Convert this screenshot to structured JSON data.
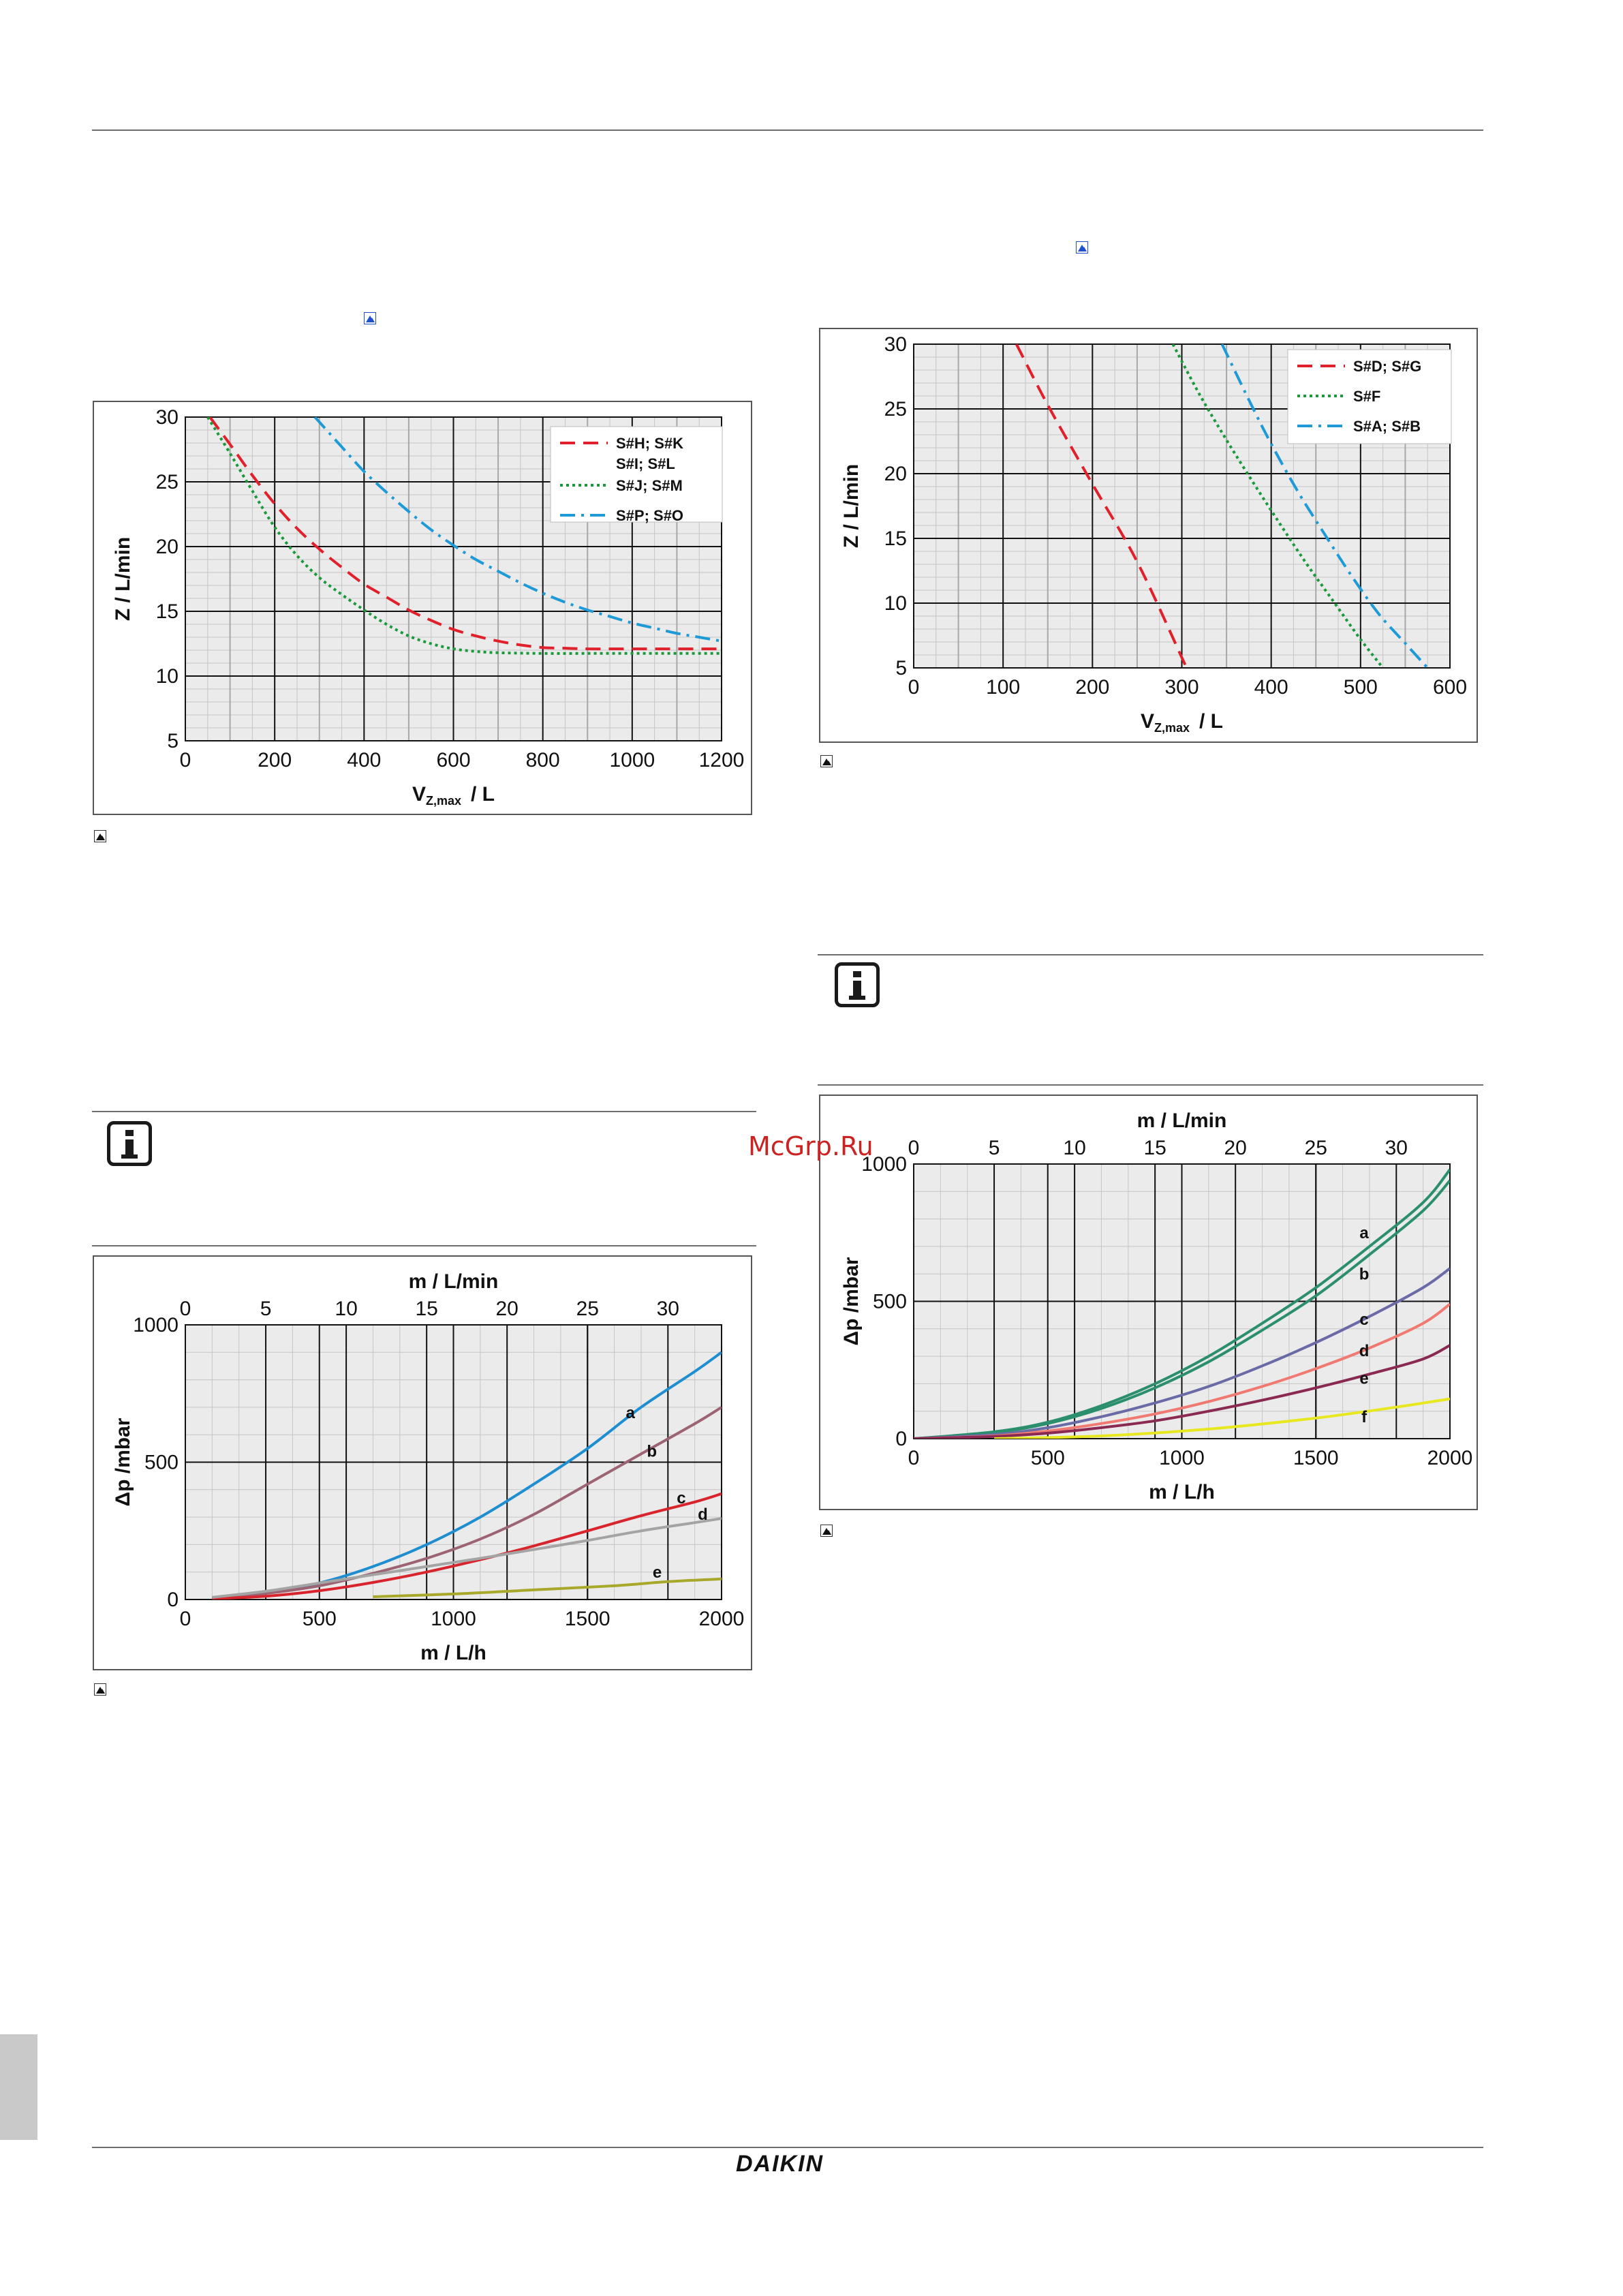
{
  "watermark": "McGrp.Ru",
  "logo": {
    "text": "DAIKIN",
    "color": "#1b7fc4"
  },
  "icons": {
    "picture": "picture-icon",
    "info": "info-icon"
  },
  "chart_data": [
    {
      "id": "chart1",
      "type": "line",
      "xlabel_main": "V",
      "xlabel_sub": "Z,max",
      "xlabel_unit": "/ L",
      "ylabel": "Z /   L/min",
      "xlim": [
        0,
        1200
      ],
      "ylim": [
        5,
        30
      ],
      "xticks": [
        0,
        200,
        400,
        600,
        800,
        1000,
        1200
      ],
      "xticks_minor": [
        100,
        300,
        500,
        700,
        900,
        1100
      ],
      "yticks": [
        5,
        10,
        15,
        20,
        25,
        30
      ],
      "grid": true,
      "legend_position": "top-right",
      "series": [
        {
          "name": "S#H; S#K",
          "name2": "S#I; S#L",
          "color": "#e0202a",
          "dash": "dashed",
          "x": [
            55,
            100,
            150,
            200,
            250,
            300,
            350,
            400,
            450,
            500,
            550,
            600,
            650,
            700,
            750,
            800,
            850,
            900,
            1000,
            1100,
            1200
          ],
          "y": [
            30,
            27.9,
            25.5,
            23.3,
            21.4,
            19.8,
            18.4,
            17.1,
            16.1,
            15.1,
            14.3,
            13.6,
            13.1,
            12.7,
            12.4,
            12.2,
            12.15,
            12.1,
            12.1,
            12.1,
            12.1
          ]
        },
        {
          "name": "S#J; S#M",
          "color": "#1a9a3a",
          "dash": "dotted",
          "x": [
            50,
            100,
            150,
            200,
            250,
            300,
            350,
            400,
            450,
            500,
            550,
            600,
            650,
            700,
            800,
            900,
            1000,
            1100,
            1200
          ],
          "y": [
            30,
            27.2,
            24.3,
            21.5,
            19.3,
            17.6,
            16.3,
            15.1,
            14.0,
            13.1,
            12.5,
            12.1,
            11.9,
            11.8,
            11.75,
            11.75,
            11.75,
            11.75,
            11.75
          ]
        },
        {
          "name": "S#P; S#O",
          "color": "#1e9ad6",
          "dash": "dashdot",
          "x": [
            290,
            350,
            400,
            450,
            500,
            550,
            600,
            650,
            700,
            750,
            800,
            850,
            900,
            950,
            1000,
            1050,
            1100,
            1150,
            1200
          ],
          "y": [
            30,
            27.7,
            25.8,
            24.2,
            22.7,
            21.3,
            20.1,
            19.0,
            18.1,
            17.2,
            16.4,
            15.7,
            15.1,
            14.6,
            14.1,
            13.7,
            13.3,
            13.0,
            12.7
          ]
        }
      ]
    },
    {
      "id": "chart2",
      "type": "line",
      "xlabel_main": "V",
      "xlabel_sub": "Z,max",
      "xlabel_unit": "/ L",
      "ylabel": "Z /   L/min",
      "xlim": [
        0,
        600
      ],
      "ylim": [
        5,
        30
      ],
      "xticks": [
        0,
        100,
        200,
        300,
        400,
        500,
        600
      ],
      "xticks_minor": [
        50,
        150,
        250,
        350,
        450,
        550
      ],
      "yticks": [
        5,
        10,
        15,
        20,
        25,
        30
      ],
      "grid": true,
      "legend_position": "top-right",
      "series": [
        {
          "name": "S#D; S#G",
          "color": "#e0202a",
          "dash": "dashed",
          "x": [
            115,
            150,
            200,
            250,
            300,
            305
          ],
          "y": [
            30,
            25.3,
            19.2,
            13.2,
            5.8,
            5
          ]
        },
        {
          "name": "S#F",
          "color": "#1a9a3a",
          "dash": "dotted",
          "x": [
            290,
            320,
            350,
            380,
            410,
            440,
            470,
            500,
            525
          ],
          "y": [
            30,
            26.1,
            22.6,
            19.3,
            16.1,
            13.0,
            10.1,
            7.2,
            5
          ]
        },
        {
          "name": "S#A; S#B",
          "color": "#1e9ad6",
          "dash": "dashdot",
          "x": [
            345,
            375,
            400,
            430,
            460,
            490,
            520,
            550,
            575
          ],
          "y": [
            30,
            25.7,
            22.3,
            18.6,
            15.3,
            12.1,
            9.2,
            6.9,
            5
          ]
        }
      ]
    },
    {
      "id": "chart3",
      "type": "line",
      "top_axis_label": "m /   L/min",
      "top_ticks": [
        0,
        5,
        10,
        15,
        20,
        25,
        30
      ],
      "xlabel": "m /   L/h",
      "ylabel": "Δp /mbar",
      "xlim": [
        0,
        2000
      ],
      "ylim": [
        0,
        1000
      ],
      "xticks": [
        0,
        500,
        1000,
        1500,
        2000
      ],
      "yticks": [
        0,
        500,
        1000
      ],
      "grid": true,
      "series": [
        {
          "name": "a",
          "color": "#1e8ed0",
          "x": [
            100,
            300,
            500,
            700,
            900,
            1100,
            1300,
            1500,
            1700,
            1900,
            2000
          ],
          "y": [
            5,
            25,
            60,
            120,
            200,
            300,
            420,
            550,
            700,
            830,
            900
          ]
        },
        {
          "name": "b",
          "color": "#9c6472",
          "x": [
            100,
            300,
            500,
            700,
            900,
            1100,
            1300,
            1500,
            1700,
            1900,
            2000
          ],
          "y": [
            5,
            22,
            50,
            95,
            150,
            220,
            310,
            420,
            530,
            640,
            700
          ]
        },
        {
          "name": "c",
          "color": "#d8242c",
          "x": [
            100,
            300,
            500,
            700,
            900,
            1100,
            1300,
            1500,
            1700,
            1900,
            2000
          ],
          "y": [
            3,
            12,
            32,
            62,
            100,
            145,
            195,
            250,
            305,
            355,
            385
          ]
        },
        {
          "name": "d",
          "color": "#a4a4a4",
          "x": [
            100,
            300,
            500,
            700,
            900,
            1100,
            1300,
            1500,
            1700,
            1900,
            2000
          ],
          "y": [
            8,
            30,
            60,
            90,
            120,
            150,
            182,
            215,
            250,
            280,
            295
          ]
        },
        {
          "name": "e",
          "color": "#a8a82a",
          "x": [
            700,
            1000,
            1300,
            1600,
            1800,
            2000
          ],
          "y": [
            10,
            20,
            35,
            50,
            65,
            75
          ]
        }
      ]
    },
    {
      "id": "chart4",
      "type": "line",
      "top_axis_label": "m /   L/min",
      "top_ticks": [
        0,
        5,
        10,
        15,
        20,
        25,
        30
      ],
      "xlabel": "m /   L/h",
      "ylabel": "Δp /mbar",
      "xlim": [
        0,
        2000
      ],
      "ylim": [
        0,
        1000
      ],
      "xticks": [
        0,
        500,
        1000,
        1500,
        2000
      ],
      "yticks": [
        0,
        500,
        1000
      ],
      "grid": true,
      "series": [
        {
          "name": "a",
          "color": "#2b8f6e",
          "x": [
            0,
            300,
            500,
            700,
            900,
            1100,
            1300,
            1500,
            1700,
            1900,
            2000
          ],
          "y": [
            0,
            25,
            60,
            120,
            200,
            300,
            420,
            550,
            700,
            860,
            980
          ]
        },
        {
          "name": "",
          "color": "#2b8f6e",
          "x": [
            0,
            300,
            500,
            700,
            900,
            1100,
            1300,
            1500,
            1700,
            1900,
            2000
          ],
          "y": [
            0,
            22,
            55,
            110,
            185,
            280,
            395,
            520,
            670,
            830,
            940
          ]
        },
        {
          "name": "b",
          "color": "#6a6aa6",
          "x": [
            0,
            300,
            500,
            700,
            900,
            1100,
            1300,
            1500,
            1700,
            1900,
            2000
          ],
          "y": [
            0,
            15,
            40,
            80,
            130,
            190,
            265,
            350,
            445,
            550,
            620
          ]
        },
        {
          "name": "c",
          "color": "#f07a72",
          "x": [
            0,
            300,
            500,
            700,
            900,
            1100,
            1300,
            1500,
            1700,
            1900,
            2000
          ],
          "y": [
            0,
            10,
            28,
            55,
            90,
            135,
            190,
            255,
            330,
            420,
            490
          ]
        },
        {
          "name": "d",
          "color": "#8a2a52",
          "x": [
            0,
            300,
            500,
            700,
            900,
            1100,
            1300,
            1500,
            1700,
            1900,
            2000
          ],
          "y": [
            0,
            8,
            20,
            40,
            65,
            100,
            140,
            185,
            235,
            290,
            340
          ]
        },
        {
          "name": "f",
          "color": "#e8e820",
          "x": [
            300,
            700,
            1100,
            1500,
            1800,
            2000
          ],
          "y": [
            0,
            10,
            35,
            75,
            115,
            145
          ]
        }
      ]
    }
  ]
}
